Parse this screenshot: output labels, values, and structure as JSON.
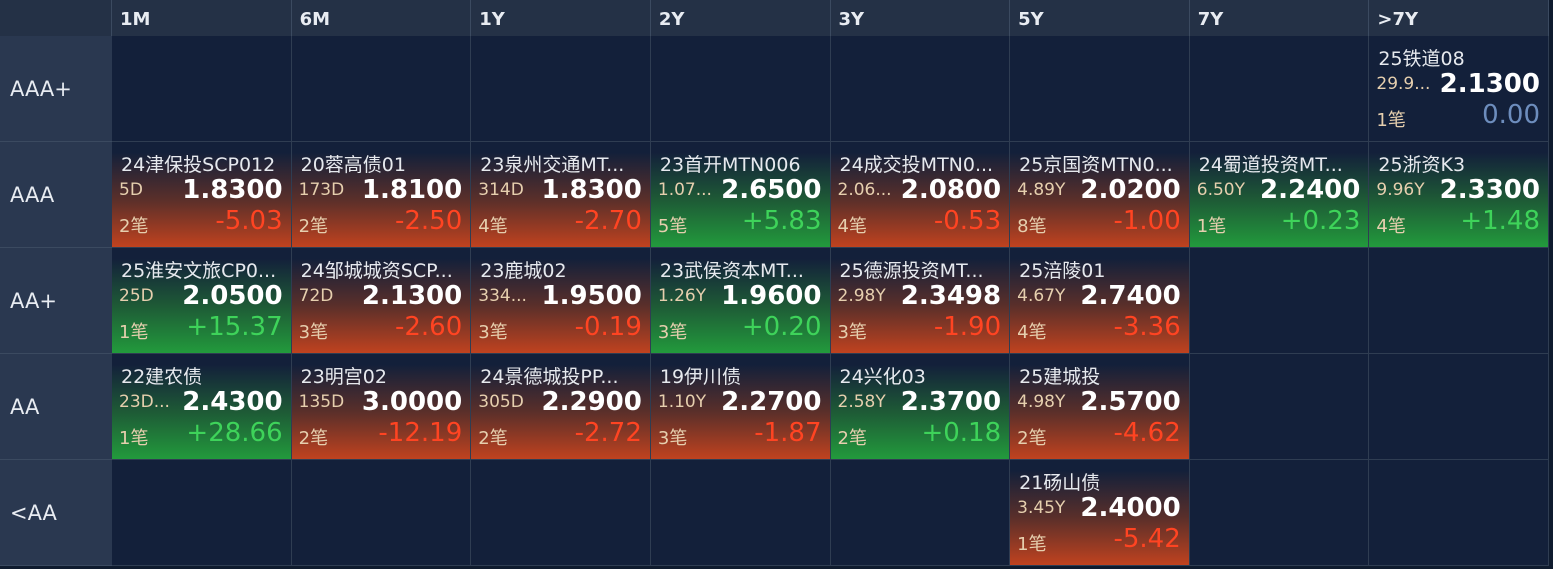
{
  "columns": [
    "1M",
    "6M",
    "1Y",
    "2Y",
    "3Y",
    "5Y",
    "7Y",
    ">7Y"
  ],
  "rows": [
    {
      "label": "AAA+",
      "cells": [
        null,
        null,
        null,
        null,
        null,
        null,
        null,
        {
          "name": "25铁道08",
          "term": "29.9...",
          "yield": "2.1300",
          "count": "1笔",
          "change": "0.00"
        }
      ]
    },
    {
      "label": "AAA",
      "cells": [
        {
          "name": "24津保投SCP012",
          "term": "5D",
          "yield": "1.8300",
          "count": "2笔",
          "change": "-5.03"
        },
        {
          "name": "20蓉高债01",
          "term": "173D",
          "yield": "1.8100",
          "count": "2笔",
          "change": "-2.50"
        },
        {
          "name": "23泉州交通MT...",
          "term": "314D",
          "yield": "1.8300",
          "count": "4笔",
          "change": "-2.70"
        },
        {
          "name": "23首开MTN006",
          "term": "1.07...",
          "yield": "2.6500",
          "count": "5笔",
          "change": "+5.83"
        },
        {
          "name": "24成交投MTN0...",
          "term": "2.06...",
          "yield": "2.0800",
          "count": "4笔",
          "change": "-0.53"
        },
        {
          "name": "25京国资MTN0...",
          "term": "4.89Y",
          "yield": "2.0200",
          "count": "8笔",
          "change": "-1.00"
        },
        {
          "name": "24蜀道投资MT...",
          "term": "6.50Y",
          "yield": "2.2400",
          "count": "1笔",
          "change": "+0.23"
        },
        {
          "name": "25浙资K3",
          "term": "9.96Y",
          "yield": "2.3300",
          "count": "4笔",
          "change": "+1.48"
        }
      ]
    },
    {
      "label": "AA+",
      "cells": [
        {
          "name": "25淮安文旅CP0...",
          "term": "25D",
          "yield": "2.0500",
          "count": "1笔",
          "change": "+15.37"
        },
        {
          "name": "24邹城城资SCP...",
          "term": "72D",
          "yield": "2.1300",
          "count": "3笔",
          "change": "-2.60"
        },
        {
          "name": "23鹿城02",
          "term": "334...",
          "yield": "1.9500",
          "count": "3笔",
          "change": "-0.19"
        },
        {
          "name": "23武侯资本MT...",
          "term": "1.26Y",
          "yield": "1.9600",
          "count": "3笔",
          "change": "+0.20"
        },
        {
          "name": "25德源投资MT...",
          "term": "2.98Y",
          "yield": "2.3498",
          "count": "3笔",
          "change": "-1.90"
        },
        {
          "name": "25涪陵01",
          "term": "4.67Y",
          "yield": "2.7400",
          "count": "4笔",
          "change": "-3.36"
        },
        null,
        null
      ]
    },
    {
      "label": "AA",
      "cells": [
        {
          "name": "22建农债",
          "term": "23D...",
          "yield": "2.4300",
          "count": "1笔",
          "change": "+28.66"
        },
        {
          "name": "23明宫02",
          "term": "135D",
          "yield": "3.0000",
          "count": "2笔",
          "change": "-12.19"
        },
        {
          "name": "24景德城投PP...",
          "term": "305D",
          "yield": "2.2900",
          "count": "2笔",
          "change": "-2.72"
        },
        {
          "name": "19伊川债",
          "term": "1.10Y",
          "yield": "2.2700",
          "count": "3笔",
          "change": "-1.87"
        },
        {
          "name": "24兴化03",
          "term": "2.58Y",
          "yield": "2.3700",
          "count": "2笔",
          "change": "+0.18"
        },
        {
          "name": "25建城投",
          "term": "4.98Y",
          "yield": "2.5700",
          "count": "2笔",
          "change": "-4.62"
        },
        null,
        null
      ]
    },
    {
      "label": "<AA",
      "cells": [
        null,
        null,
        null,
        null,
        null,
        {
          "name": "21砀山债",
          "term": "3.45Y",
          "yield": "2.4000",
          "count": "1笔",
          "change": "-5.42"
        },
        null,
        null
      ]
    }
  ]
}
